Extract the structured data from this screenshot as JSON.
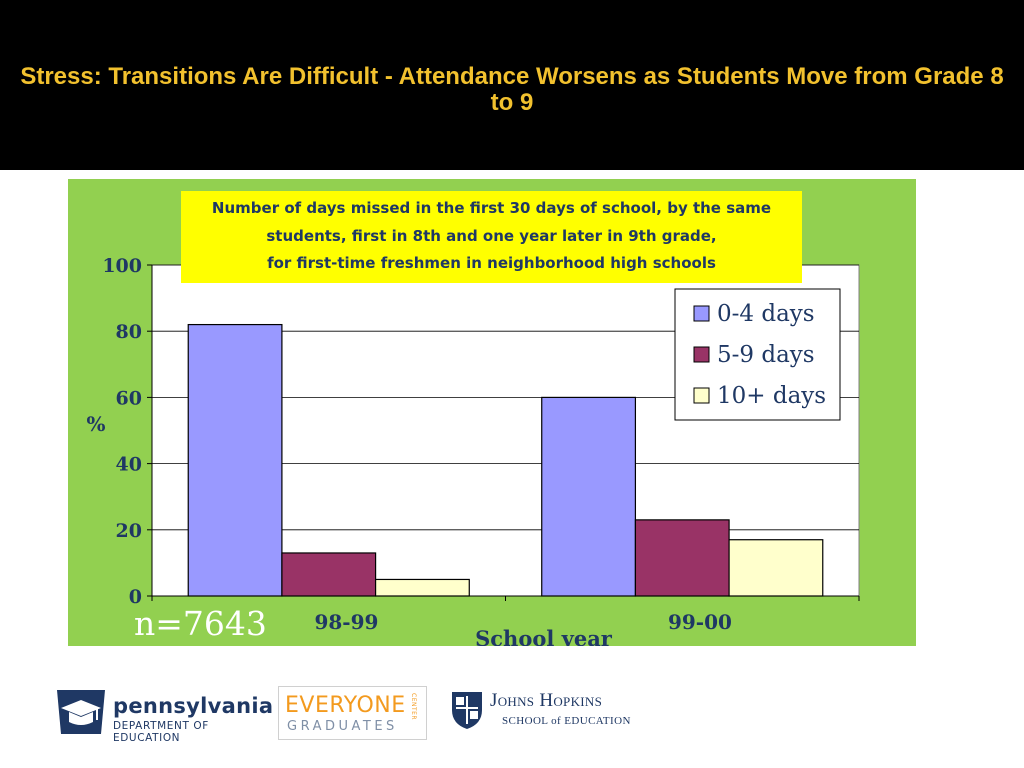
{
  "slide": {
    "title": "Stress: Transitions Are Difficult - Attendance Worsens as Students Move from Grade 8 to 9"
  },
  "chart_data": {
    "type": "bar",
    "title": "Number of days missed in the first 30 days of school,  by the same\nstudents, first in 8th and one year later in 9th grade,\nfor first-time freshmen in neighborhood high schools",
    "categories": [
      "98-99",
      "99-00"
    ],
    "series": [
      {
        "name": "0-4 days",
        "values": [
          82,
          60
        ],
        "color": "#9999ff"
      },
      {
        "name": "5-9 days",
        "values": [
          13,
          23
        ],
        "color": "#993366"
      },
      {
        "name": "10+ days",
        "values": [
          5,
          17
        ],
        "color": "#ffffcc"
      }
    ],
    "xlabel": "School year",
    "ylabel": "%",
    "ylim": [
      0,
      100
    ],
    "yticks": [
      0,
      20,
      40,
      60,
      80,
      100
    ],
    "grid": true,
    "legend_position": "top-right",
    "annotation": "n=7643",
    "panel_color": "#92d050",
    "title_box_color": "#ffff00"
  },
  "logos": {
    "pa": {
      "line1": "pennsylvania",
      "line2": "DEPARTMENT OF EDUCATION"
    },
    "eg": {
      "line1": "EVERYONE",
      "line2": "GRADUATES",
      "line3": "CENTER"
    },
    "jh": {
      "line1": "Johns Hopkins",
      "line2": "SCHOOL of EDUCATION"
    }
  }
}
